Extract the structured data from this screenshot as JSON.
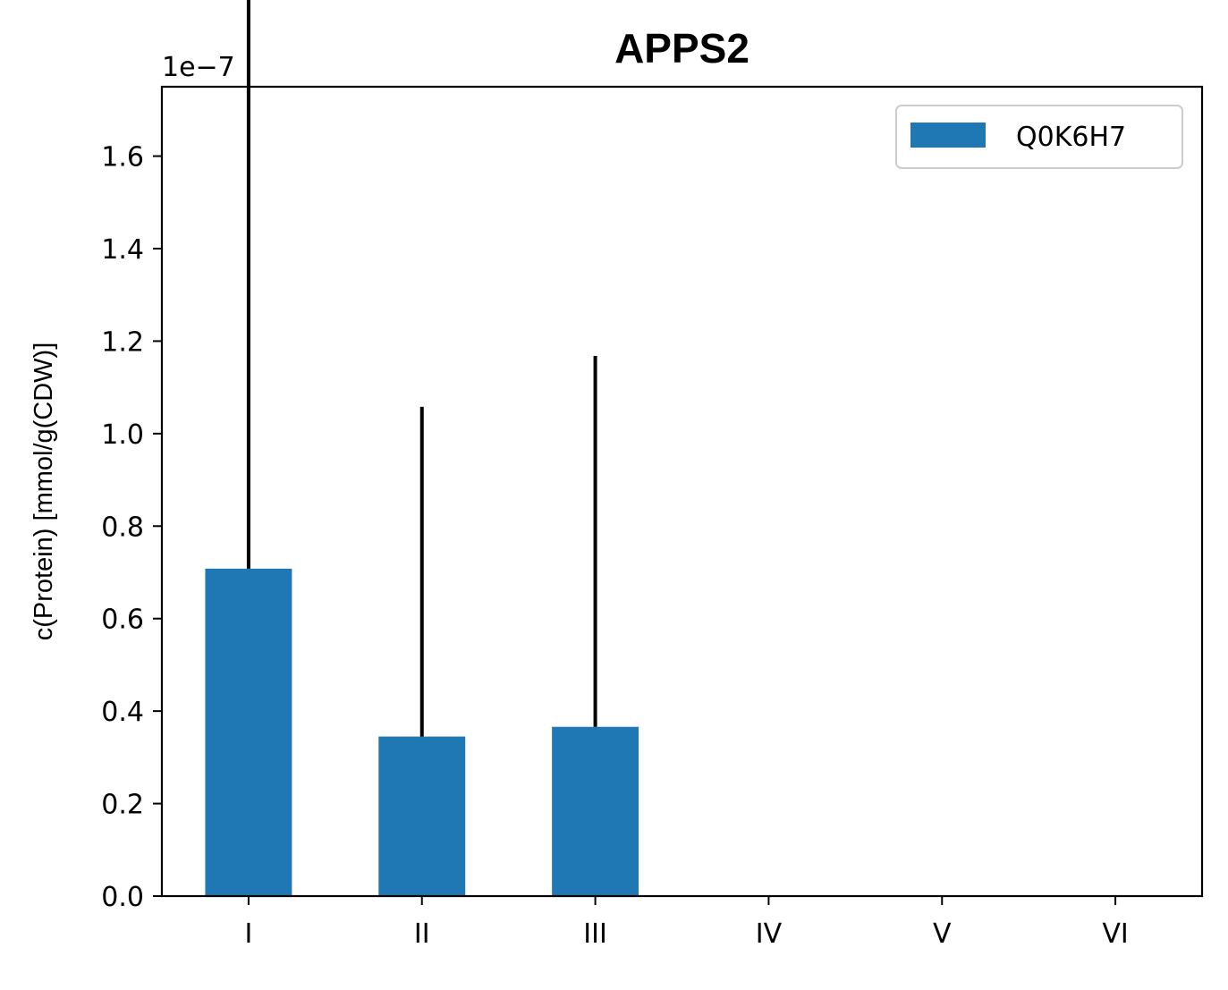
{
  "chart_data": {
    "type": "bar",
    "title": "APPS2",
    "xlabel": "",
    "ylabel": "c(Protein) [mmol/g(CDW)]",
    "offset_text": "1e−7",
    "scale_exponent": -7,
    "categories": [
      "I",
      "II",
      "III",
      "IV",
      "V",
      "VI"
    ],
    "series": [
      {
        "name": "Q0K6H7",
        "color": "#1f77b4",
        "values": [
          0.708,
          0.345,
          0.366,
          0,
          0,
          0
        ],
        "error_upper": [
          1.652,
          0.713,
          0.802,
          0,
          0,
          0
        ],
        "error_lower": [
          0,
          0,
          0,
          0,
          0,
          0
        ]
      }
    ],
    "ylim": [
      0,
      1.75
    ],
    "yticks": [
      0.0,
      0.2,
      0.4,
      0.6,
      0.8,
      1.0,
      1.2,
      1.4,
      1.6
    ],
    "ytick_labels": [
      "0.0",
      "0.2",
      "0.4",
      "0.6",
      "0.8",
      "1.0",
      "1.2",
      "1.4",
      "1.6"
    ],
    "grid": false,
    "legend_position": "top-right",
    "error_bar_color": "#000000"
  }
}
